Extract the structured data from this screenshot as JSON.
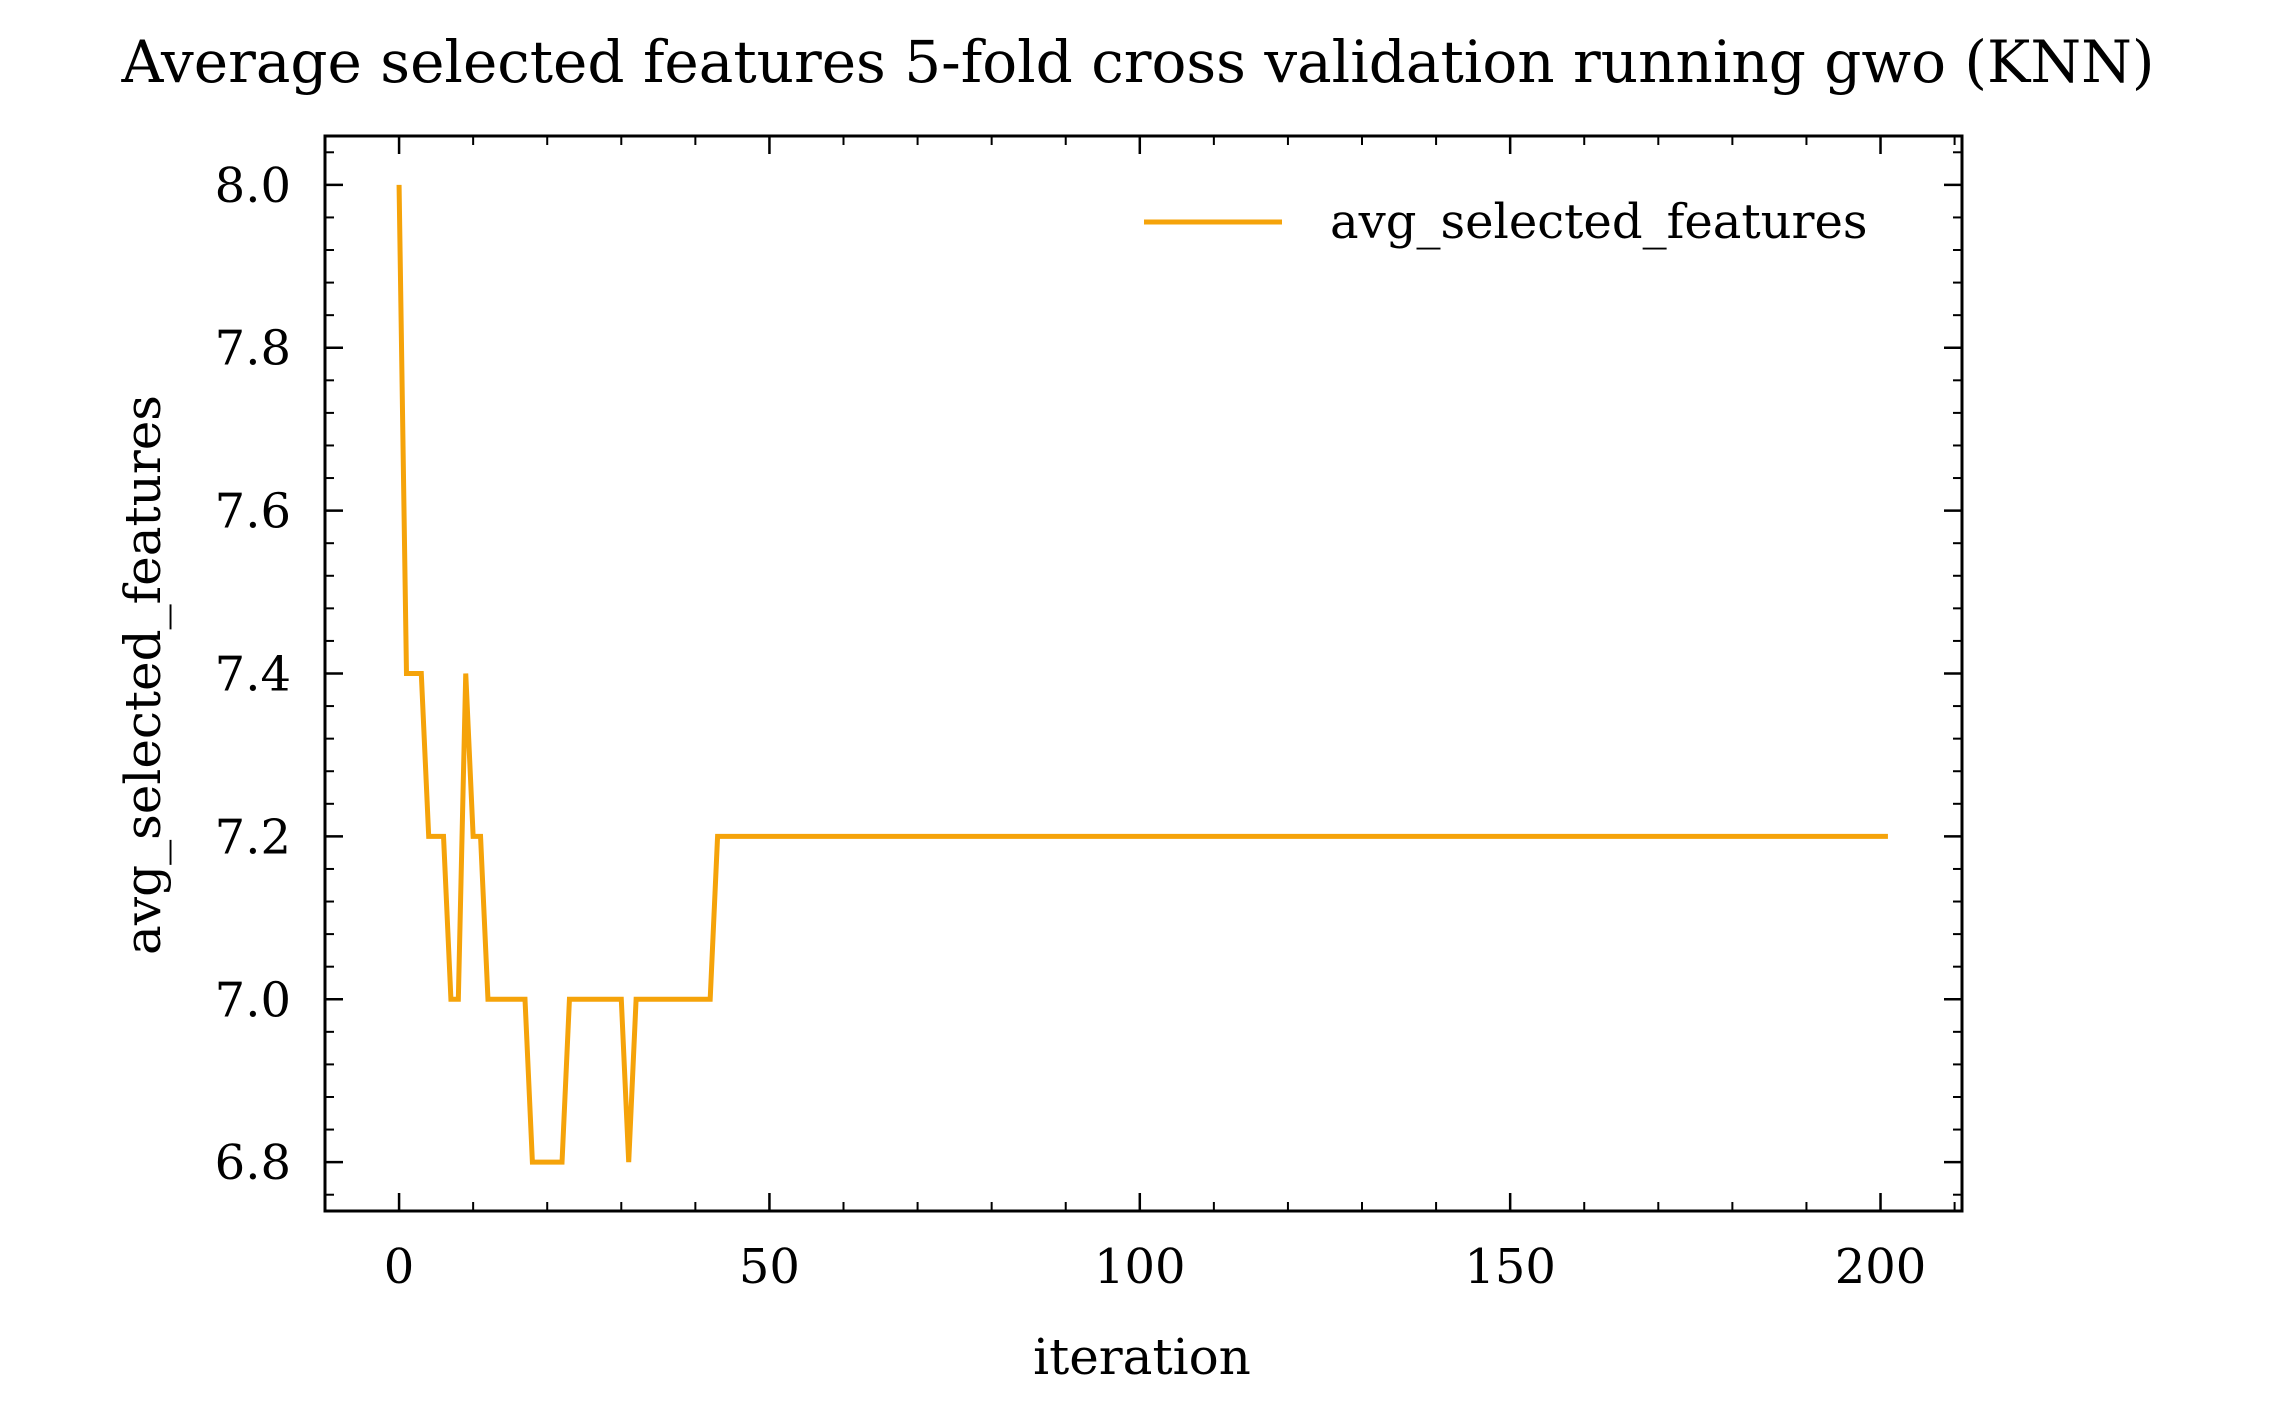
{
  "chart_data": {
    "type": "line",
    "title": "Average selected features 5-fold cross validation running gwo (KNN)",
    "xlabel": "iteration",
    "ylabel": "avg_selected_features",
    "xlim": [
      -10,
      211
    ],
    "ylim": [
      6.74,
      8.06
    ],
    "x_ticks": [
      0,
      50,
      100,
      150,
      200
    ],
    "y_ticks": [
      6.8,
      7.0,
      7.2,
      7.4,
      7.6,
      7.8,
      8.0
    ],
    "x_tick_labels": [
      "0",
      "50",
      "100",
      "150",
      "200"
    ],
    "y_tick_labels": [
      "6.8",
      "7.0",
      "7.2",
      "7.4",
      "7.6",
      "7.8",
      "8.0"
    ],
    "grid": false,
    "legend_position": "top-right",
    "series": [
      {
        "name": "avg_selected_features",
        "color": "#f5a30a",
        "points": [
          [
            0,
            8.0
          ],
          [
            1,
            7.4
          ],
          [
            2,
            7.4
          ],
          [
            3,
            7.4
          ],
          [
            4,
            7.2
          ],
          [
            5,
            7.2
          ],
          [
            6,
            7.2
          ],
          [
            7,
            7.0
          ],
          [
            8,
            7.0
          ],
          [
            9,
            7.4
          ],
          [
            10,
            7.2
          ],
          [
            11,
            7.2
          ],
          [
            12,
            7.0
          ],
          [
            13,
            7.0
          ],
          [
            14,
            7.0
          ],
          [
            15,
            7.0
          ],
          [
            16,
            7.0
          ],
          [
            17,
            7.0
          ],
          [
            18,
            6.8
          ],
          [
            19,
            6.8
          ],
          [
            20,
            6.8
          ],
          [
            21,
            6.8
          ],
          [
            22,
            6.8
          ],
          [
            23,
            7.0
          ],
          [
            24,
            7.0
          ],
          [
            25,
            7.0
          ],
          [
            26,
            7.0
          ],
          [
            27,
            7.0
          ],
          [
            28,
            7.0
          ],
          [
            29,
            7.0
          ],
          [
            30,
            7.0
          ],
          [
            31,
            6.8
          ],
          [
            32,
            7.0
          ],
          [
            33,
            7.0
          ],
          [
            34,
            7.0
          ],
          [
            35,
            7.0
          ],
          [
            36,
            7.0
          ],
          [
            37,
            7.0
          ],
          [
            38,
            7.0
          ],
          [
            39,
            7.0
          ],
          [
            40,
            7.0
          ],
          [
            41,
            7.0
          ],
          [
            42,
            7.0
          ],
          [
            43,
            7.2
          ],
          [
            44,
            7.2
          ],
          [
            60,
            7.2
          ],
          [
            80,
            7.2
          ],
          [
            100,
            7.2
          ],
          [
            120,
            7.2
          ],
          [
            140,
            7.2
          ],
          [
            160,
            7.2
          ],
          [
            180,
            7.2
          ],
          [
            201,
            7.2
          ]
        ]
      }
    ]
  }
}
